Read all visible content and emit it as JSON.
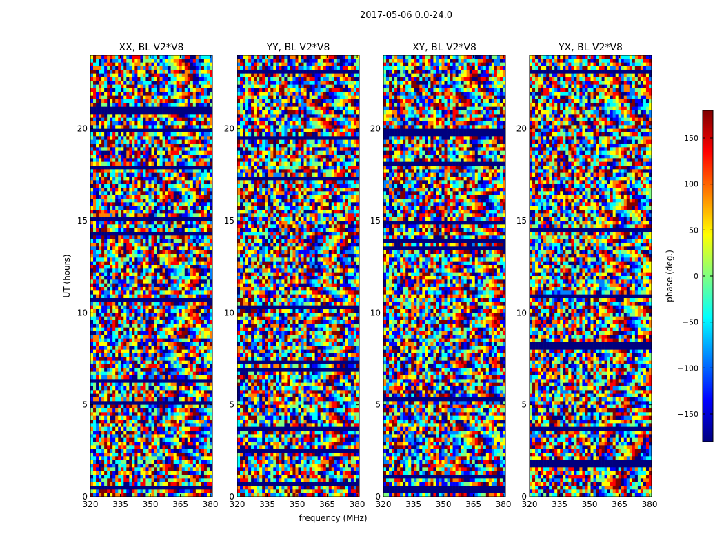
{
  "figure": {
    "suptitle": "2017-05-06 0.0-24.0",
    "xlabel": "frequency (MHz)",
    "ylabel": "UT (hours)"
  },
  "colorbar": {
    "label": "phase (deg.)",
    "range": [
      -180,
      180
    ],
    "ticks": [
      -150,
      -100,
      -50,
      0,
      50,
      100,
      150
    ],
    "tick_labels": [
      "−150",
      "−100",
      "−50",
      "0",
      "50",
      "100",
      "150"
    ],
    "colormap": [
      "#00007f",
      "#0000ff",
      "#0080ff",
      "#00ffff",
      "#80ff80",
      "#ffff00",
      "#ff8000",
      "#ff0000",
      "#7f0000"
    ]
  },
  "chart_data": [
    {
      "type": "heatmap",
      "title": "XX, BL V2*V8",
      "xlabel": "",
      "ylabel": "UT (hours)",
      "xlim": [
        320,
        381
      ],
      "ylim": [
        0,
        24
      ],
      "xticks": [
        320,
        335,
        350,
        365,
        380
      ],
      "yticks": [
        0,
        5,
        10,
        15,
        20
      ],
      "z": "phase (deg.)"
    },
    {
      "type": "heatmap",
      "title": "YY, BL V2*V8",
      "xlabel": "frequency (MHz)",
      "ylabel": "",
      "xlim": [
        320,
        381
      ],
      "ylim": [
        0,
        24
      ],
      "xticks": [
        320,
        335,
        350,
        365,
        380
      ],
      "yticks": [
        0,
        5,
        10,
        15,
        20
      ],
      "z": "phase (deg.)"
    },
    {
      "type": "heatmap",
      "title": "XY, BL V2*V8",
      "xlabel": "",
      "ylabel": "",
      "xlim": [
        320,
        381
      ],
      "ylim": [
        0,
        24
      ],
      "xticks": [
        320,
        335,
        350,
        365,
        380
      ],
      "yticks": [
        0,
        5,
        10,
        15,
        20
      ],
      "z": "phase (deg.)"
    },
    {
      "type": "heatmap",
      "title": "YX, BL V2*V8",
      "xlabel": "",
      "ylabel": "",
      "xlim": [
        320,
        381
      ],
      "ylim": [
        0,
        24
      ],
      "xticks": [
        320,
        335,
        350,
        365,
        380
      ],
      "yticks": [
        0,
        5,
        10,
        15,
        20
      ],
      "z": "phase (deg.)"
    }
  ]
}
